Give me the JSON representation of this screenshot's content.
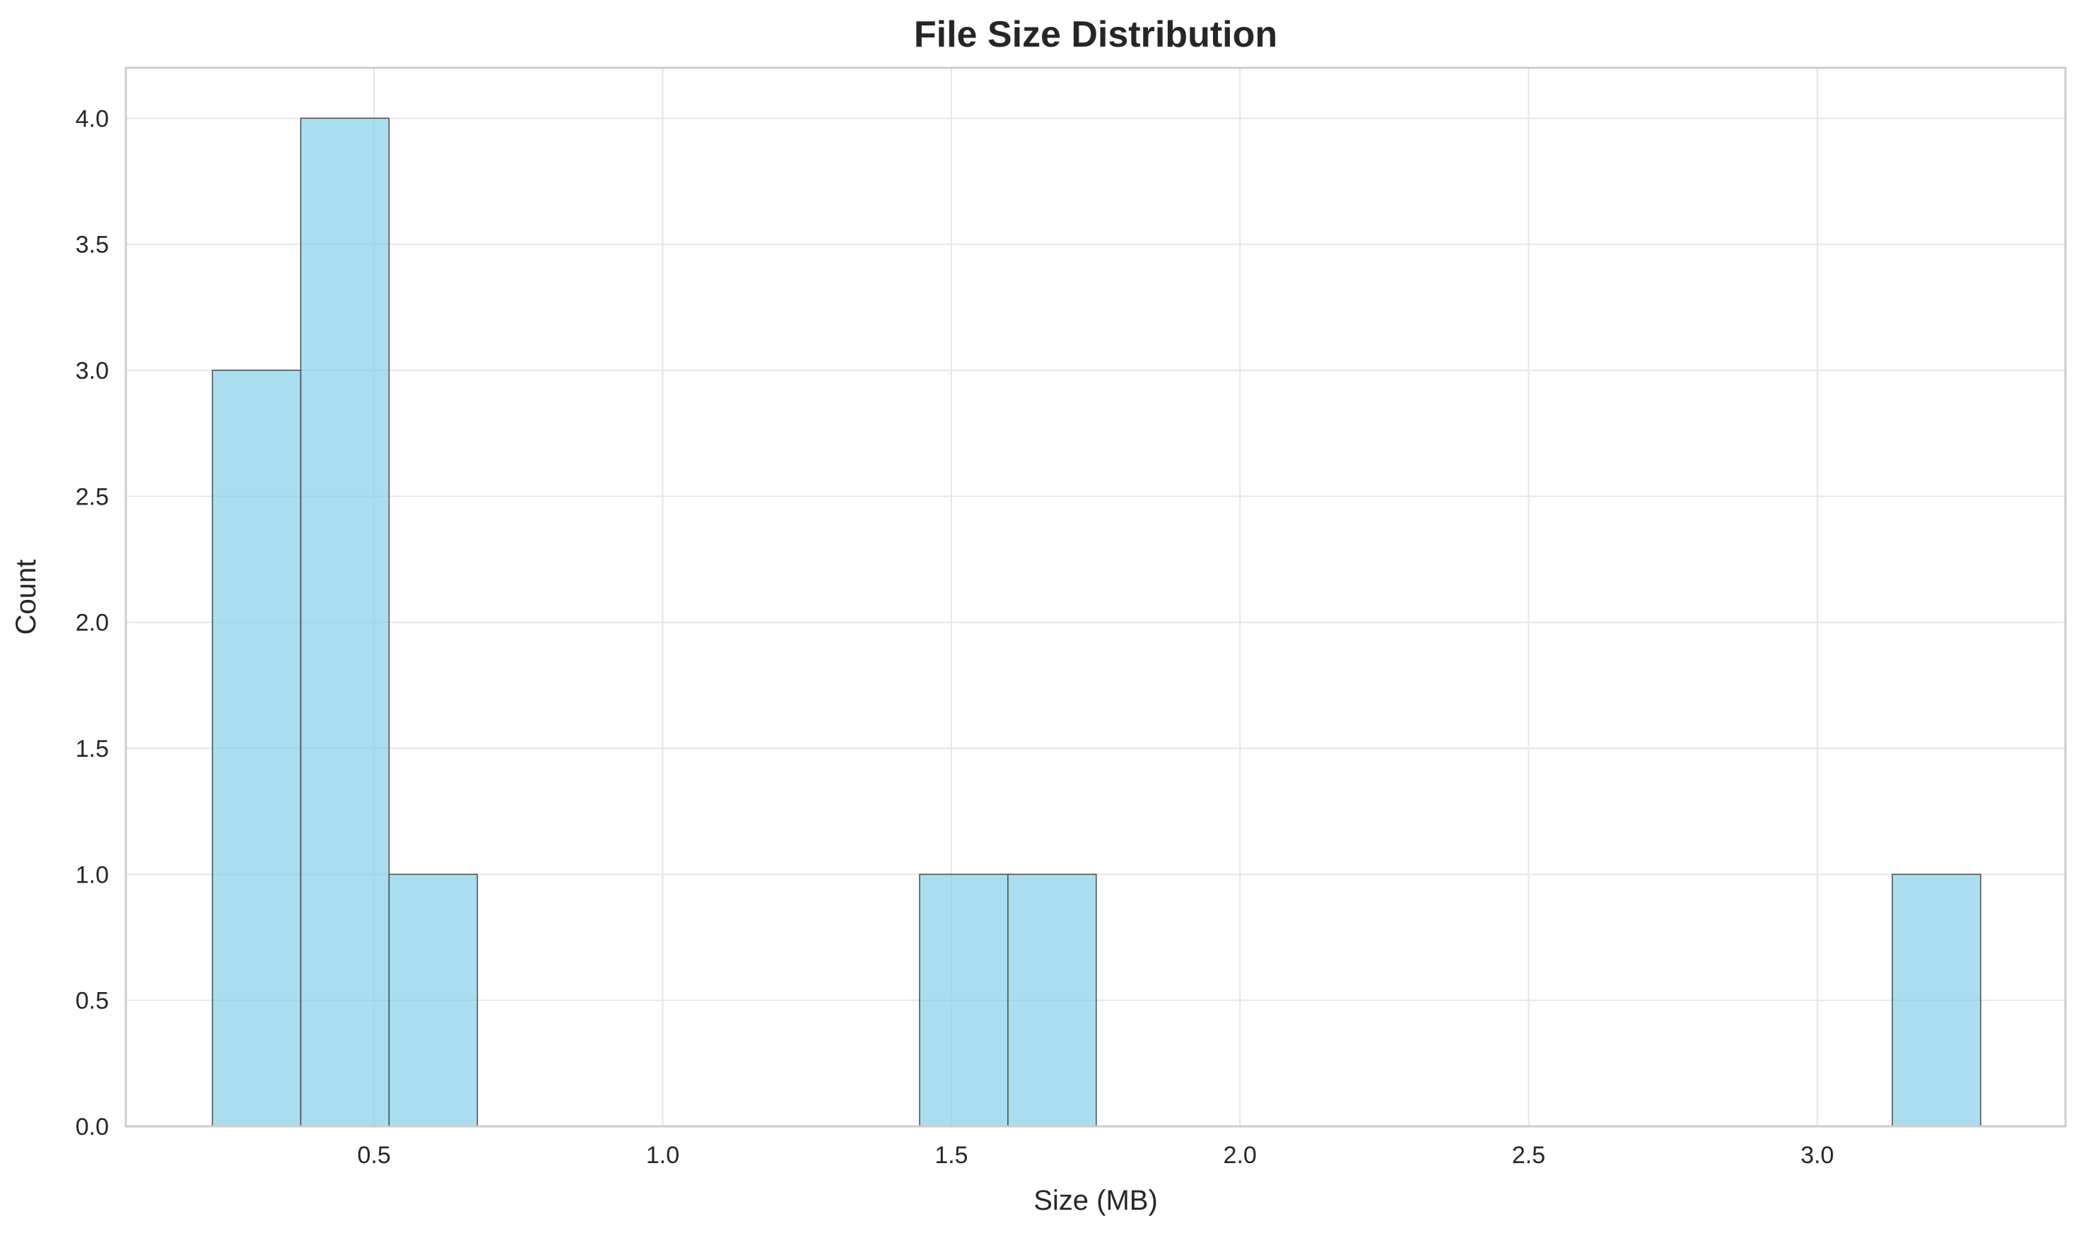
{
  "chart_data": {
    "type": "bar",
    "subtype": "histogram",
    "title": "File Size Distribution",
    "xlabel": "Size (MB)",
    "ylabel": "Count",
    "xlim": [
      0.07,
      3.43
    ],
    "ylim": [
      0,
      4.2
    ],
    "xticks": [
      "0.5",
      "1.0",
      "1.5",
      "2.0",
      "2.5",
      "3.0"
    ],
    "xtick_values": [
      0.5,
      1.0,
      1.5,
      2.0,
      2.5,
      3.0
    ],
    "yticks": [
      "0.0",
      "0.5",
      "1.0",
      "1.5",
      "2.0",
      "2.5",
      "3.0",
      "3.5",
      "4.0"
    ],
    "ytick_values": [
      0,
      0.5,
      1.0,
      1.5,
      2.0,
      2.5,
      3.0,
      3.5,
      4.0
    ],
    "bins": [
      {
        "start": 0.22,
        "end": 0.373,
        "count": 3
      },
      {
        "start": 0.373,
        "end": 0.526,
        "count": 4
      },
      {
        "start": 0.526,
        "end": 0.679,
        "count": 1
      },
      {
        "start": 1.445,
        "end": 1.598,
        "count": 1
      },
      {
        "start": 1.598,
        "end": 1.751,
        "count": 1
      },
      {
        "start": 3.13,
        "end": 3.283,
        "count": 1
      }
    ],
    "grid": true,
    "legend": false,
    "colors": {
      "bar_fill": "#87ceeb",
      "bar_edge": "#4a4a4a",
      "grid": "#e6e6e6",
      "axes_edge": "#cccccc",
      "text": "#262626"
    }
  }
}
